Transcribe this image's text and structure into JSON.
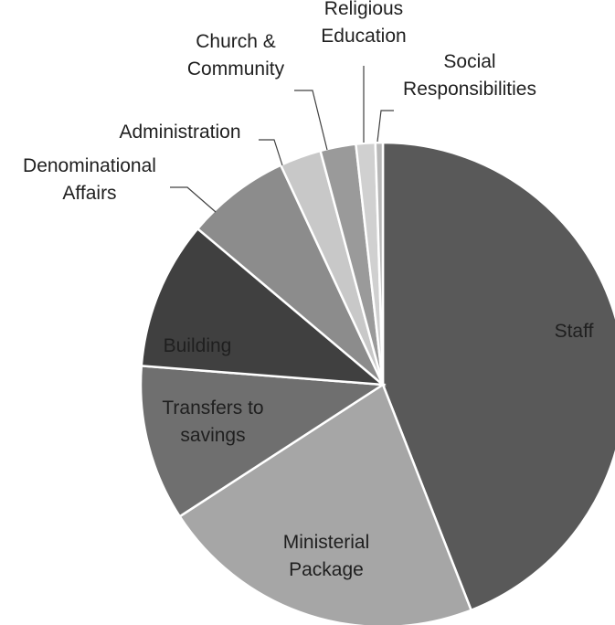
{
  "chart_data": {
    "type": "pie",
    "title": "",
    "start_angle_deg": 0,
    "direction": "clockwise",
    "slices": [
      {
        "name": "Staff",
        "label_lines": [
          "Staff"
        ],
        "value": 44.5,
        "color": "#595959",
        "label_style": "inside"
      },
      {
        "name": "Ministerial Package",
        "label_lines": [
          "Ministerial",
          "Package"
        ],
        "value": 22.0,
        "color": "#a6a6a6",
        "label_style": "inside"
      },
      {
        "name": "Transfers to savings",
        "label_lines": [
          "Transfers to",
          "savings"
        ],
        "value": 10.5,
        "color": "#6f6f6f",
        "label_style": "inside"
      },
      {
        "name": "Building",
        "label_lines": [
          "Building"
        ],
        "value": 10.0,
        "color": "#404040",
        "label_style": "inside"
      },
      {
        "name": "Denominational Affairs",
        "label_lines": [
          "Denominational",
          "Affairs"
        ],
        "value": 7.0,
        "color": "#8c8c8c",
        "label_style": "outside"
      },
      {
        "name": "Administration",
        "label_lines": [
          "Administration"
        ],
        "value": 2.8,
        "color": "#c8c8c8",
        "label_style": "outside"
      },
      {
        "name": "Church & Community",
        "label_lines": [
          "Church &",
          "Community"
        ],
        "value": 2.4,
        "color": "#9a9a9a",
        "label_style": "outside"
      },
      {
        "name": "Religious Education",
        "label_lines": [
          "Religious",
          "Education"
        ],
        "value": 1.3,
        "color": "#d0d0d0",
        "label_style": "outside"
      },
      {
        "name": "Social Responsibilities",
        "label_lines": [
          "Social",
          "Responsibilities"
        ],
        "value": 0.5,
        "color": "#b8b8b8",
        "label_style": "outside"
      }
    ]
  }
}
